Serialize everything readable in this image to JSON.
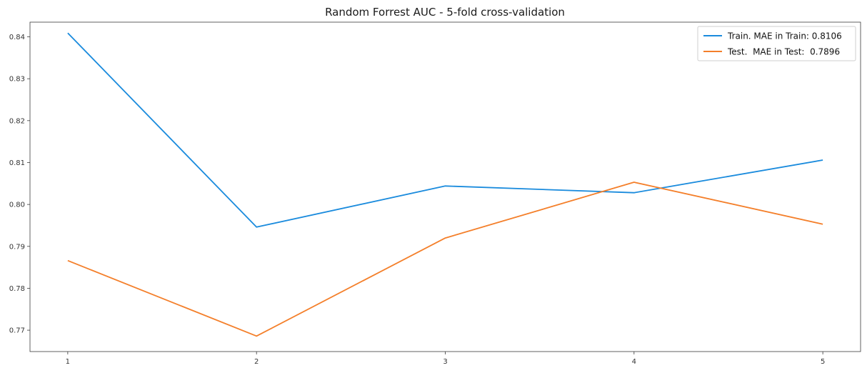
{
  "chart_data": {
    "type": "line",
    "title": "Random Forrest AUC - 5-fold cross-validation",
    "xlabel": "",
    "ylabel": "",
    "x": [
      1,
      2,
      3,
      4,
      5
    ],
    "xticks": [
      "1",
      "2",
      "3",
      "4",
      "5"
    ],
    "xlim": [
      0.8,
      5.2
    ],
    "yticks": [
      0.77,
      0.78,
      0.79,
      0.8,
      0.81,
      0.82,
      0.83,
      0.84
    ],
    "ytick_labels": [
      "0.77",
      "0.78",
      "0.79",
      "0.80",
      "0.81",
      "0.82",
      "0.83",
      "0.84"
    ],
    "ylim": [
      0.7649,
      0.8435
    ],
    "grid": false,
    "legend_position": "top-right",
    "series": [
      {
        "name": "Train. MAE in Train: 0.8106",
        "color": "#1a8bdd",
        "values": [
          0.8409,
          0.7946,
          0.8044,
          0.8028,
          0.8106
        ]
      },
      {
        "name": "Test.  MAE in Test:  0.7896",
        "color": "#f47f2a",
        "values": [
          0.7866,
          0.7686,
          0.792,
          0.8053,
          0.7953
        ]
      }
    ]
  }
}
